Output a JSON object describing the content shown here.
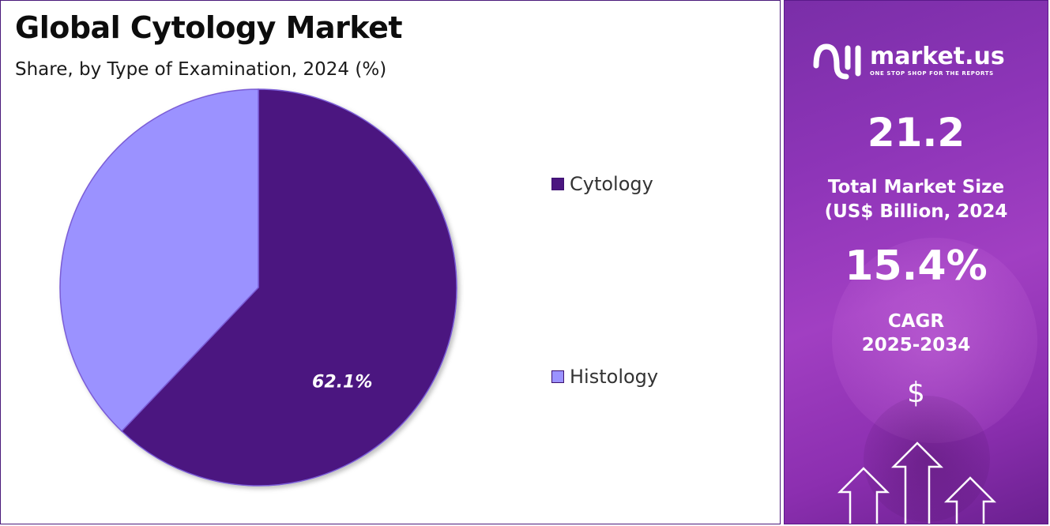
{
  "header": {
    "title": "Global Cytology Market",
    "subtitle": "Share, by Type of Examination, 2024 (%)"
  },
  "chart_data": {
    "type": "pie",
    "title": "Global Cytology Market",
    "subtitle": "Share, by Type of Examination, 2024 (%)",
    "categories": [
      "Cytology",
      "Histology"
    ],
    "values": [
      62.1,
      37.9
    ],
    "data_labels": [
      "62.1%",
      ""
    ],
    "colors": [
      "#4b1680",
      "#9b92ff"
    ],
    "legend_position": "right",
    "start_angle": "12 o'clock, clockwise"
  },
  "sidebar": {
    "logo": {
      "name": "market.us",
      "tagline": "ONE STOP SHOP FOR THE REPORTS",
      "icon": "market-us-logo-icon"
    },
    "market_size_value": "21.2",
    "market_size_label_line1": "Total Market Size",
    "market_size_label_line2": "(US$ Billion, 2024",
    "cagr_value": "15.4%",
    "cagr_label_line1": "CAGR",
    "cagr_label_line2": "2025-2034",
    "currency_symbol": "$",
    "decor_icon": "up-arrows-icon",
    "background_colors": [
      "#7a2ea8",
      "#a13fc2",
      "#6b2090"
    ]
  }
}
